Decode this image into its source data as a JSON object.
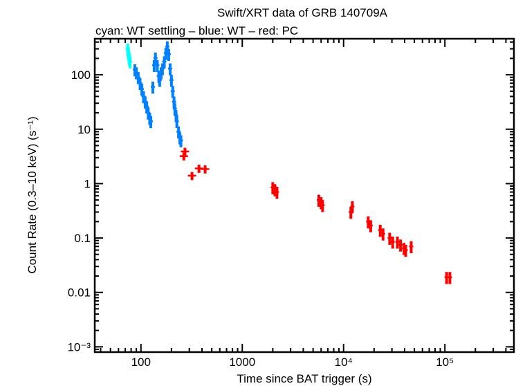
{
  "chart_data": {
    "type": "scatter",
    "title": "Swift/XRT data of GRB 140709A",
    "subtitle": "cyan: WT settling – blue: WT – red: PC",
    "xlabel": "Time since BAT trigger (s)",
    "ylabel": "Count Rate (0.3–10 keV) (s⁻¹)",
    "xscale": "log",
    "yscale": "log",
    "xlim": [
      35,
      480000
    ],
    "ylim": [
      0.0008,
      460
    ],
    "grid": false,
    "xticks": [
      {
        "v": 100,
        "label": "100"
      },
      {
        "v": 1000,
        "label": "1000"
      },
      {
        "v": 10000,
        "label": "10⁴"
      },
      {
        "v": 100000,
        "label": "10⁵"
      }
    ],
    "yticks": [
      {
        "v": 0.001,
        "label": "10⁻³"
      },
      {
        "v": 0.01,
        "label": "0.01"
      },
      {
        "v": 0.1,
        "label": "0.1"
      },
      {
        "v": 1,
        "label": "1"
      },
      {
        "v": 10,
        "label": "10"
      },
      {
        "v": 100,
        "label": "100"
      }
    ],
    "series": [
      {
        "name": "WT settling",
        "color": "#00ffff",
        "points": [
          [
            74,
            300
          ],
          [
            75,
            260
          ],
          [
            76,
            220
          ],
          [
            77,
            195
          ],
          [
            78,
            175
          ]
        ]
      },
      {
        "name": "WT",
        "color": "#0080ff",
        "points": [
          [
            87,
            125
          ],
          [
            90,
            110
          ],
          [
            94,
            90
          ],
          [
            98,
            70
          ],
          [
            102,
            55
          ],
          [
            106,
            40
          ],
          [
            110,
            32
          ],
          [
            114,
            26
          ],
          [
            118,
            20
          ],
          [
            122,
            16
          ],
          [
            125,
            14
          ],
          [
            131,
            60
          ],
          [
            135,
            150
          ],
          [
            139,
            205
          ],
          [
            145,
            150
          ],
          [
            150,
            95
          ],
          [
            153,
            80
          ],
          [
            158,
            110
          ],
          [
            163,
            130
          ],
          [
            170,
            175
          ],
          [
            176,
            250
          ],
          [
            182,
            330
          ],
          [
            188,
            240
          ],
          [
            194,
            130
          ],
          [
            200,
            80
          ],
          [
            206,
            50
          ],
          [
            212,
            32
          ],
          [
            216,
            24
          ],
          [
            222,
            18
          ],
          [
            226,
            14
          ],
          [
            235,
            9
          ],
          [
            242,
            7
          ],
          [
            248,
            6.2
          ]
        ]
      },
      {
        "name": "PC",
        "color": "#ff0000",
        "points": [
          [
            265,
            3.2
          ],
          [
            272,
            3.9
          ],
          [
            319,
            1.4
          ],
          [
            374,
            1.9
          ],
          [
            430,
            1.85
          ],
          [
            2000,
            0.85
          ],
          [
            2100,
            0.78
          ],
          [
            2200,
            0.7
          ],
          [
            5700,
            0.5
          ],
          [
            6000,
            0.45
          ],
          [
            6200,
            0.4
          ],
          [
            11800,
            0.3
          ],
          [
            12200,
            0.38
          ],
          [
            17500,
            0.2
          ],
          [
            18500,
            0.17
          ],
          [
            23000,
            0.14
          ],
          [
            24500,
            0.12
          ],
          [
            28500,
            0.1
          ],
          [
            30500,
            0.085
          ],
          [
            34000,
            0.085
          ],
          [
            36500,
            0.075
          ],
          [
            39500,
            0.065
          ],
          [
            41000,
            0.06
          ],
          [
            46500,
            0.07
          ],
          [
            104000,
            0.019
          ],
          [
            112000,
            0.019
          ]
        ]
      }
    ]
  }
}
